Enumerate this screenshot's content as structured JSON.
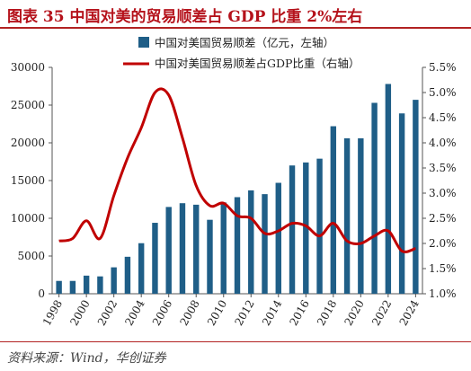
{
  "header": {
    "figure_title": "图表 35   中国对美的贸易顺差占 GDP 比重 2%左右"
  },
  "footer": {
    "source": "资料来源：Wind，华创证券"
  },
  "colors": {
    "bar": "#1f5e87",
    "line": "#c00000",
    "title": "#b5121b",
    "rule": "#b22222"
  },
  "chart_data": {
    "type": "bar",
    "legend_position": "top",
    "grid": false,
    "x": [
      1998,
      1999,
      2000,
      2001,
      2002,
      2003,
      2004,
      2005,
      2006,
      2007,
      2008,
      2009,
      2010,
      2011,
      2012,
      2013,
      2014,
      2015,
      2016,
      2017,
      2018,
      2019,
      2020,
      2021,
      2022,
      2023,
      2024
    ],
    "x_tick_labels": [
      "1998",
      "2000",
      "2002",
      "2004",
      "2006",
      "2008",
      "2010",
      "2012",
      "2014",
      "2016",
      "2018",
      "2020",
      "2022",
      "2024"
    ],
    "series": [
      {
        "name": "中国对美国贸易顺差（亿元，左轴）",
        "type": "bar",
        "axis": "left",
        "values": [
          1700,
          1700,
          2400,
          2300,
          3500,
          4900,
          6700,
          9400,
          11500,
          12000,
          11800,
          9800,
          12100,
          12800,
          13700,
          13200,
          14700,
          17000,
          17400,
          17900,
          22200,
          20600,
          20600,
          25300,
          27800,
          23900,
          25700
        ]
      },
      {
        "name": "中国对美国贸易顺差占GDP比重（右轴）",
        "type": "line",
        "axis": "right",
        "smooth": true,
        "values": [
          2.05,
          2.1,
          2.45,
          2.1,
          2.95,
          3.7,
          4.3,
          5.0,
          4.95,
          4.1,
          3.15,
          2.75,
          2.8,
          2.55,
          2.5,
          2.2,
          2.25,
          2.4,
          2.35,
          2.15,
          2.4,
          2.05,
          2.0,
          2.15,
          2.25,
          1.85,
          1.9
        ]
      }
    ],
    "y_left": {
      "min": 0,
      "max": 30000,
      "ticks": [
        "0",
        "5000",
        "10000",
        "15000",
        "20000",
        "25000",
        "30000"
      ]
    },
    "y_right": {
      "min": 1.0,
      "max": 5.5,
      "ticks": [
        "1.0%",
        "1.5%",
        "2.0%",
        "2.5%",
        "3.0%",
        "3.5%",
        "4.0%",
        "4.5%",
        "5.0%",
        "5.5%"
      ]
    }
  }
}
